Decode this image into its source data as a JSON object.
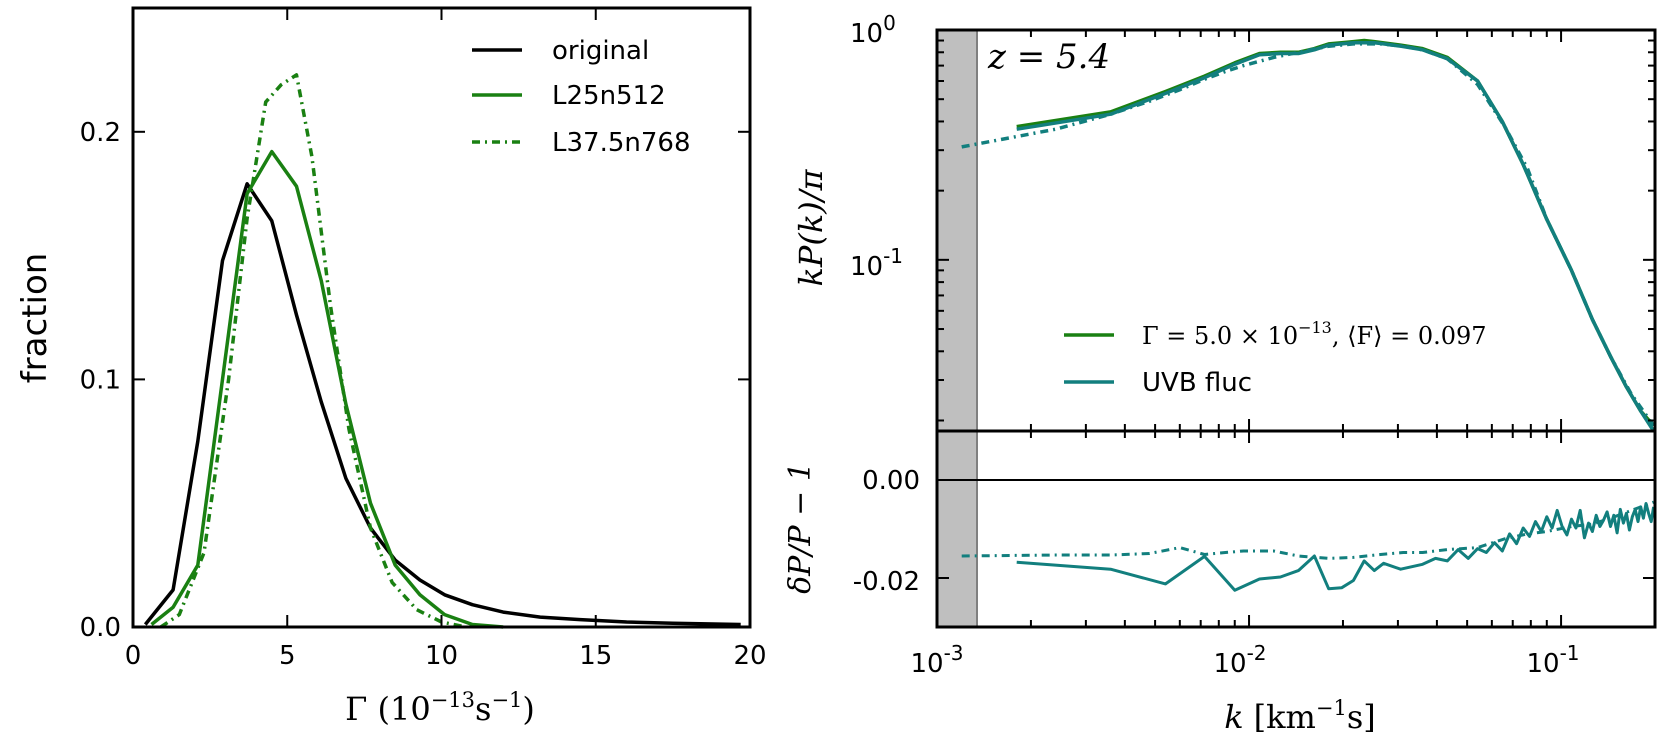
{
  "figure": {
    "left_panel": {
      "chart_data": {
        "type": "line",
        "xlabel_main": "Γ (10",
        "xlabel_sup1": "−13",
        "xlabel_unit": "s",
        "xlabel_sup2": "−1",
        "xlabel_close": ")",
        "ylabel": "fraction",
        "xlim": [
          0,
          20
        ],
        "ylim": [
          0,
          0.25
        ],
        "xticks": [
          0,
          5,
          10,
          15,
          20
        ],
        "xtick_labels": [
          "0",
          "5",
          "10",
          "15",
          "20"
        ],
        "yticks": [
          0,
          0.1,
          0.2
        ],
        "ytick_labels": [
          "0.0",
          "0.1",
          "0.2"
        ],
        "series": [
          {
            "name": "original",
            "color": "#000000",
            "style": "solid",
            "x": [
              0.4,
              1.3,
              2.1,
              2.9,
              3.7,
              4.5,
              5.3,
              6.1,
              6.9,
              7.7,
              8.5,
              9.3,
              10.1,
              11.0,
              12.0,
              13.2,
              14.5,
              16.0,
              17.5,
              19.7
            ],
            "y": [
              0.001,
              0.015,
              0.075,
              0.148,
              0.179,
              0.164,
              0.126,
              0.091,
              0.06,
              0.04,
              0.027,
              0.019,
              0.013,
              0.009,
              0.006,
              0.004,
              0.003,
              0.002,
              0.0015,
              0.001
            ]
          },
          {
            "name": "L25n512",
            "color": "#1a8012",
            "style": "solid",
            "x": [
              0.6,
              1.3,
              2.1,
              2.9,
              3.7,
              4.5,
              5.3,
              6.1,
              6.9,
              7.7,
              8.5,
              9.3,
              10.1,
              11.0,
              12.0
            ],
            "y": [
              0.001,
              0.008,
              0.025,
              0.1,
              0.175,
              0.192,
              0.178,
              0.14,
              0.09,
              0.05,
              0.025,
              0.013,
              0.005,
              0.001,
              0.0
            ]
          },
          {
            "name": "L37.5n768",
            "color": "#1a8012",
            "style": "dashdot",
            "x": [
              0.9,
              1.5,
              2.3,
              3.1,
              3.7,
              4.3,
              4.8,
              5.3,
              5.8,
              6.4,
              7.0,
              7.7,
              8.4,
              9.2,
              10.0,
              10.8
            ],
            "y": [
              0.0,
              0.005,
              0.03,
              0.1,
              0.165,
              0.212,
              0.219,
              0.223,
              0.19,
              0.13,
              0.08,
              0.04,
              0.018,
              0.007,
              0.002,
              0.0
            ]
          }
        ],
        "legend": [
          "original",
          "L25n512",
          "L37.5n768"
        ]
      }
    },
    "right_panel": {
      "top": {
        "chart_data": {
          "type": "line",
          "xscale": "log",
          "yscale": "log",
          "xlim": [
            0.001,
            0.2
          ],
          "ylim": [
            0.018,
            1.0
          ],
          "ylabel": "kP(k)/π",
          "annotation": "z = 5.4",
          "ytick_labels": [
            "10",
            "10"
          ],
          "ytick_sups": [
            "0",
            "-1"
          ],
          "ytick_values": [
            1.0,
            0.1
          ],
          "legend_line1": "Γ = 5.0 × 10",
          "legend_line1_sup": "−13",
          "legend_line1_tail": ", ⟨F⟩ = 0.097",
          "legend_line2": "UVB fluc",
          "shaded_region": [
            0.001,
            0.00138
          ],
          "series": [
            {
              "name": "Γ=5.0e-13, <F>=0.097",
              "color": "#1a8012",
              "style": "solid",
              "x": [
                0.0018,
                0.0036,
                0.0054,
                0.0072,
                0.009,
                0.0108,
                0.0126,
                0.0144,
                0.0162,
                0.018,
                0.0198,
                0.0216,
                0.0234,
                0.0252,
                0.027,
                0.0306,
                0.036,
                0.0432,
                0.054,
                0.0648,
                0.0756,
                0.09,
                0.108,
                0.126,
                0.144,
                0.162,
                0.18,
                0.198
              ],
              "y": [
                0.38,
                0.44,
                0.54,
                0.63,
                0.72,
                0.79,
                0.8,
                0.8,
                0.83,
                0.87,
                0.88,
                0.89,
                0.9,
                0.89,
                0.88,
                0.86,
                0.83,
                0.76,
                0.6,
                0.4,
                0.26,
                0.15,
                0.09,
                0.055,
                0.038,
                0.028,
                0.022,
                0.019
              ]
            },
            {
              "name": "UVB fluc",
              "color": "#127f7e",
              "style": "solid",
              "x": [
                0.0018,
                0.0036,
                0.0054,
                0.0072,
                0.009,
                0.0108,
                0.0126,
                0.0144,
                0.0162,
                0.018,
                0.0198,
                0.0216,
                0.0234,
                0.0252,
                0.027,
                0.0306,
                0.036,
                0.0432,
                0.054,
                0.0648,
                0.0756,
                0.09,
                0.108,
                0.126,
                0.144,
                0.162,
                0.18,
                0.198
              ],
              "y": [
                0.37,
                0.43,
                0.53,
                0.62,
                0.71,
                0.78,
                0.79,
                0.79,
                0.82,
                0.86,
                0.87,
                0.88,
                0.88,
                0.88,
                0.87,
                0.85,
                0.82,
                0.75,
                0.6,
                0.4,
                0.26,
                0.15,
                0.09,
                0.055,
                0.038,
                0.028,
                0.022,
                0.018
              ]
            },
            {
              "name": "dash-dot (L37.5n768)",
              "color": "#127f7e",
              "style": "dashdot",
              "x": [
                0.0012,
                0.0024,
                0.0036,
                0.0048,
                0.006,
                0.0072,
                0.0084,
                0.0096,
                0.012,
                0.0144,
                0.018,
                0.0216,
                0.0264,
                0.0312,
                0.036,
                0.0432,
                0.054,
                0.066,
                0.078,
                0.09,
                0.108,
                0.126,
                0.144,
                0.168,
                0.198
              ],
              "y": [
                0.31,
                0.37,
                0.43,
                0.49,
                0.55,
                0.61,
                0.66,
                0.7,
                0.76,
                0.8,
                0.85,
                0.87,
                0.87,
                0.85,
                0.82,
                0.75,
                0.58,
                0.38,
                0.25,
                0.15,
                0.09,
                0.055,
                0.038,
                0.026,
                0.019
              ]
            }
          ]
        }
      },
      "bottom": {
        "chart_data": {
          "type": "line",
          "xscale": "log",
          "xlim": [
            0.001,
            0.2
          ],
          "ylim": [
            -0.03,
            0.01
          ],
          "ylabel": "δP/P − 1",
          "ytick_labels": [
            "0.00",
            "-0.02"
          ],
          "ytick_values": [
            0.0,
            -0.02
          ],
          "xtick_bases": [
            "10",
            "10",
            "10"
          ],
          "xtick_sups": [
            "-3",
            "-2",
            "-1"
          ],
          "xtick_values": [
            0.001,
            0.01,
            0.1
          ],
          "xlabel_k": "k",
          "xlabel_unit": "[km",
          "xlabel_sup": "−1",
          "xlabel_tail": "s]",
          "series": [
            {
              "name": "UVB fluc ratio",
              "color": "#127f7e",
              "style": "solid",
              "x": [
                0.0018,
                0.0036,
                0.0054,
                0.0072,
                0.009,
                0.0108,
                0.0126,
                0.0144,
                0.0162,
                0.018,
                0.0198,
                0.0216,
                0.0234,
                0.0252,
                0.027,
                0.0306,
                0.036,
                0.0396,
                0.0432,
                0.0468,
                0.0504,
                0.054,
                0.0576,
                0.0612,
                0.0648,
                0.0684,
                0.072,
                0.0756,
                0.0792,
                0.0828,
                0.0864,
                0.09,
                0.0936,
                0.0972,
                0.1008,
                0.1044,
                0.108,
                0.1116,
                0.1152,
                0.1188,
                0.1224,
                0.126,
                0.1296,
                0.1332,
                0.1368,
                0.1404,
                0.144,
                0.1476,
                0.1512,
                0.1548,
                0.1584,
                0.162,
                0.1656,
                0.1692,
                0.1728,
                0.1764,
                0.18,
                0.1836,
                0.1872,
                0.1908,
                0.1944,
                0.198
              ],
              "y": [
                -0.0168,
                -0.0182,
                -0.0212,
                -0.0156,
                -0.0225,
                -0.0202,
                -0.0198,
                -0.0185,
                -0.0155,
                -0.0222,
                -0.022,
                -0.0205,
                -0.0165,
                -0.0185,
                -0.017,
                -0.0182,
                -0.0172,
                -0.016,
                -0.0165,
                -0.0142,
                -0.016,
                -0.014,
                -0.0148,
                -0.0128,
                -0.0145,
                -0.011,
                -0.013,
                -0.0098,
                -0.0115,
                -0.0085,
                -0.0105,
                -0.0075,
                -0.0098,
                -0.0062,
                -0.0095,
                -0.0112,
                -0.008,
                -0.0098,
                -0.0062,
                -0.0118,
                -0.0088,
                -0.0105,
                -0.0072,
                -0.0095,
                -0.0082,
                -0.0065,
                -0.0095,
                -0.0072,
                -0.0108,
                -0.006,
                -0.0088,
                -0.0068,
                -0.0102,
                -0.0075,
                -0.006,
                -0.0085,
                -0.0055,
                -0.0078,
                -0.0048,
                -0.0068,
                -0.0085,
                -0.0055
              ]
            },
            {
              "name": "dash-dot ratio",
              "color": "#127f7e",
              "style": "dashdot",
              "x": [
                0.0012,
                0.0024,
                0.0036,
                0.0048,
                0.006,
                0.0072,
                0.0084,
                0.0096,
                0.012,
                0.0144,
                0.018,
                0.0216,
                0.0264,
                0.0312,
                0.036,
                0.0432,
                0.054,
                0.066,
                0.078,
                0.09,
                0.108,
                0.126,
                0.144,
                0.168,
                0.198
              ],
              "y": [
                -0.0155,
                -0.0153,
                -0.0153,
                -0.015,
                -0.0138,
                -0.0152,
                -0.0148,
                -0.0145,
                -0.0145,
                -0.0155,
                -0.016,
                -0.0158,
                -0.0152,
                -0.0148,
                -0.0148,
                -0.0142,
                -0.0138,
                -0.012,
                -0.011,
                -0.0105,
                -0.0095,
                -0.009,
                -0.0078,
                -0.0062,
                -0.0045
              ]
            },
            {
              "name": "zero line",
              "color": "#000000",
              "style": "solid",
              "x": [
                0.001,
                0.2
              ],
              "y": [
                0.0,
                0.0
              ]
            }
          ]
        }
      }
    }
  }
}
